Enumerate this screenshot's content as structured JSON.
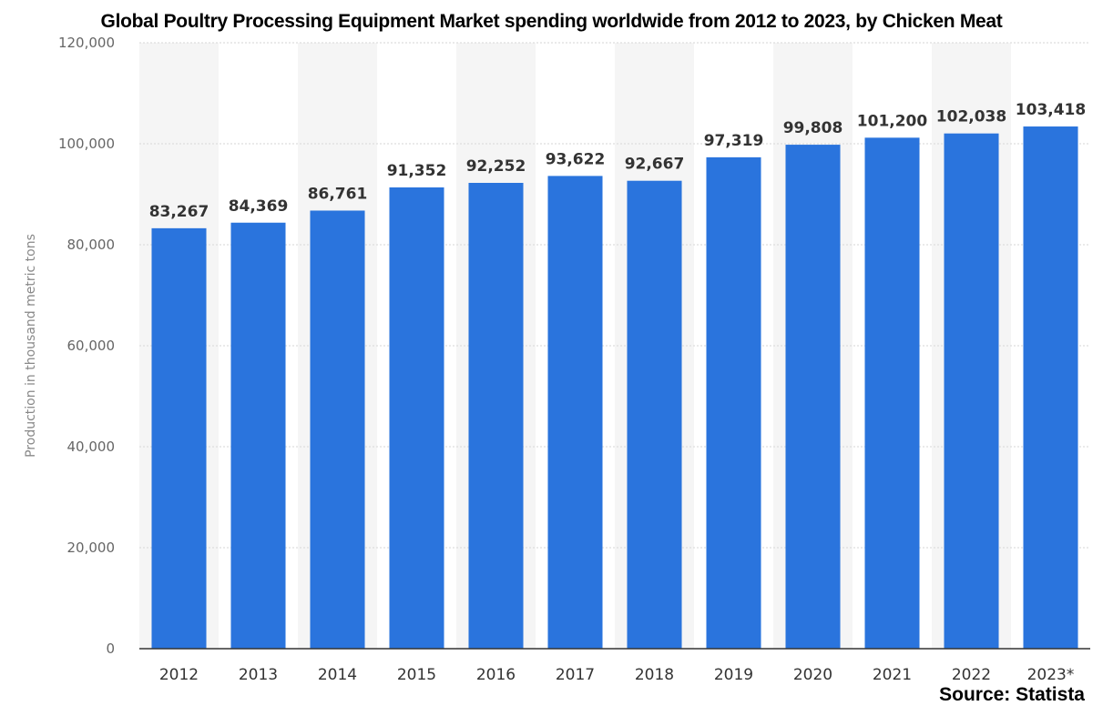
{
  "chart_data": {
    "type": "bar",
    "title": "Global Poultry Processing Equipment Market spending worldwide from 2012 to 2023, by Chicken Meat",
    "ylabel": "Production in thousand metric tons",
    "xlabel": "",
    "categories": [
      "2012",
      "2013",
      "2014",
      "2015",
      "2016",
      "2017",
      "2018",
      "2019",
      "2020",
      "2021",
      "2022",
      "2023*"
    ],
    "values": [
      83267,
      84369,
      86761,
      91352,
      92252,
      93622,
      92667,
      97319,
      99808,
      101200,
      102038,
      103418
    ],
    "value_labels": [
      "83,267",
      "84,369",
      "86,761",
      "91,352",
      "92,252",
      "93,622",
      "92,667",
      "97,319",
      "99,808",
      "101,200",
      "102,038",
      "103,418"
    ],
    "ylim": [
      0,
      120000
    ],
    "yticks": [
      0,
      20000,
      40000,
      60000,
      80000,
      100000,
      120000
    ],
    "ytick_labels": [
      "0",
      "20,000",
      "40,000",
      "60,000",
      "80,000",
      "100,000",
      "120,000"
    ],
    "grid": true,
    "legend": "none",
    "bar_color": "#2a74dd",
    "band_color": "#f5f5f5"
  },
  "source": "Source: Statista"
}
